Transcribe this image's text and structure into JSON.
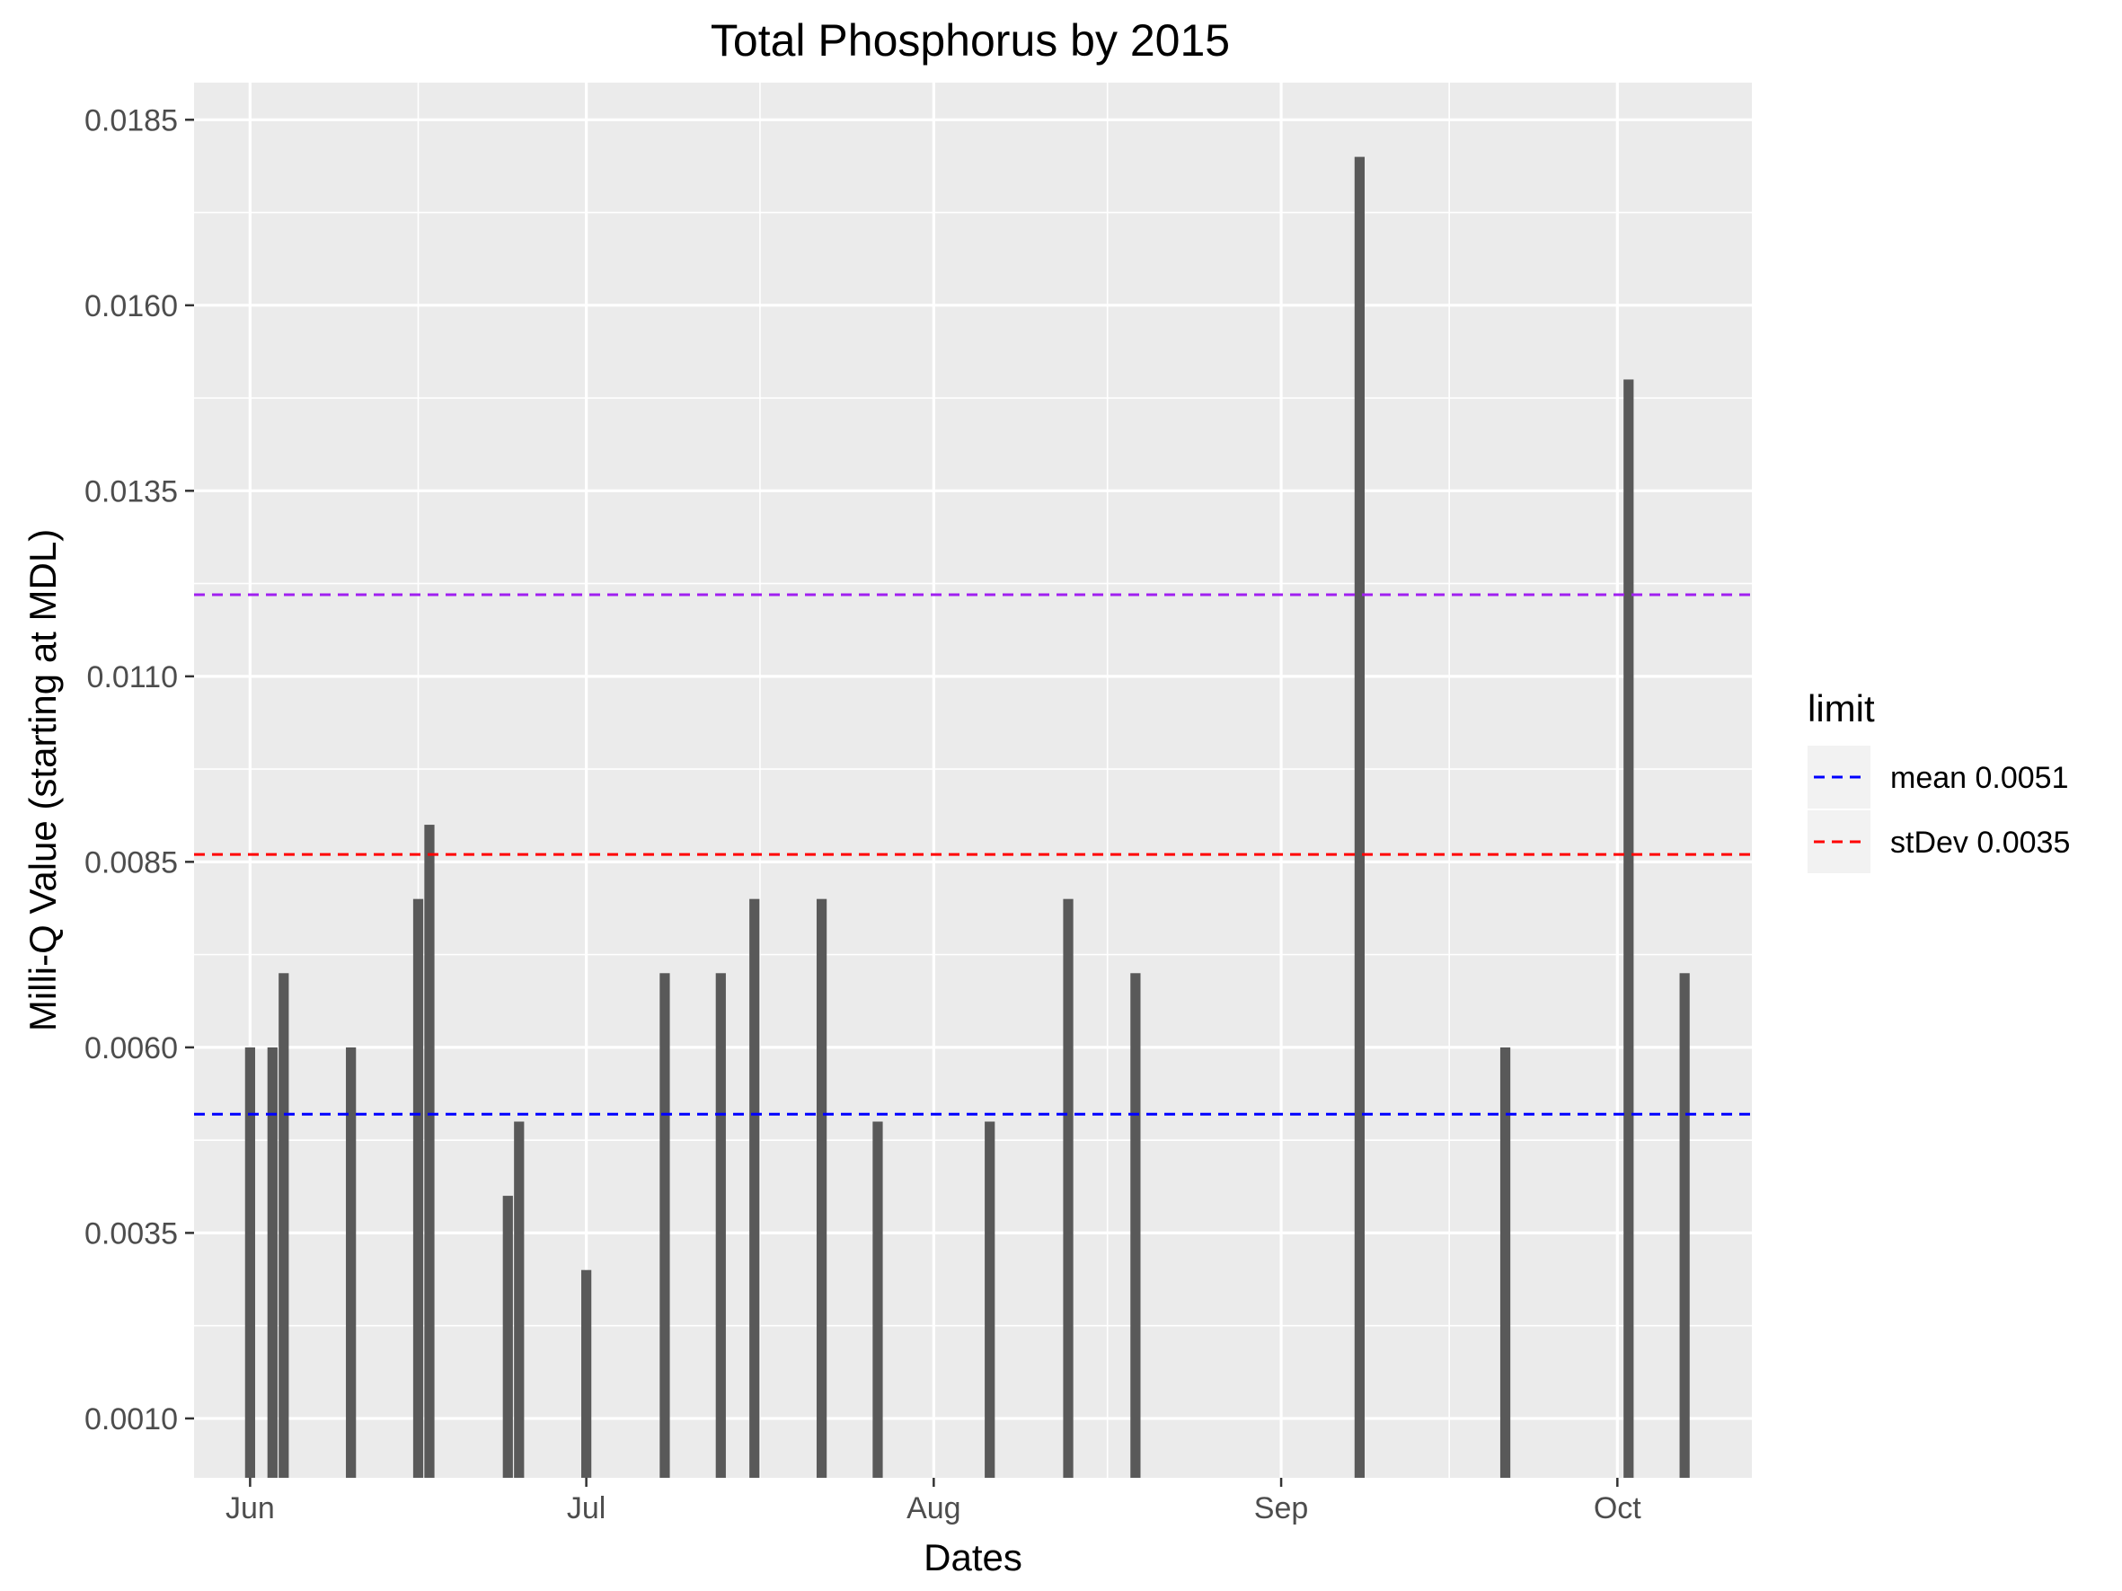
{
  "chart_data": {
    "type": "bar",
    "title": "Total Phosphorus by 2015",
    "xlabel": "Dates",
    "ylabel": "Milli-Q Value (starting at MDL)",
    "ylim": [
      0.0002,
      0.019
    ],
    "xlim": [
      "2015-05-27",
      "2015-10-13"
    ],
    "y_ticks": [
      "0.0010",
      "0.0035",
      "0.0060",
      "0.0085",
      "0.0110",
      "0.0135",
      "0.0160",
      "0.0185"
    ],
    "x_ticks": [
      {
        "label": "Jun",
        "date": "2015-06-01"
      },
      {
        "label": "Jul",
        "date": "2015-07-01"
      },
      {
        "label": "Aug",
        "date": "2015-08-01"
      },
      {
        "label": "Sep",
        "date": "2015-09-01"
      },
      {
        "label": "Oct",
        "date": "2015-10-01"
      }
    ],
    "bar_color": "#595959",
    "grid": true,
    "panel_background": "#ebebeb",
    "series": [
      {
        "name": "",
        "points": [
          {
            "x": "2015-06-01",
            "y": 0.006
          },
          {
            "x": "2015-06-03",
            "y": 0.006
          },
          {
            "x": "2015-06-04",
            "y": 0.007
          },
          {
            "x": "2015-06-10",
            "y": 0.006
          },
          {
            "x": "2015-06-16",
            "y": 0.008
          },
          {
            "x": "2015-06-17",
            "y": 0.009
          },
          {
            "x": "2015-06-24",
            "y": 0.004
          },
          {
            "x": "2015-06-25",
            "y": 0.005
          },
          {
            "x": "2015-07-01",
            "y": 0.003
          },
          {
            "x": "2015-07-08",
            "y": 0.007
          },
          {
            "x": "2015-07-13",
            "y": 0.007
          },
          {
            "x": "2015-07-16",
            "y": 0.008
          },
          {
            "x": "2015-07-22",
            "y": 0.008
          },
          {
            "x": "2015-07-27",
            "y": 0.005
          },
          {
            "x": "2015-08-06",
            "y": 0.005
          },
          {
            "x": "2015-08-13",
            "y": 0.008
          },
          {
            "x": "2015-08-19",
            "y": 0.007
          },
          {
            "x": "2015-09-08",
            "y": 0.018
          },
          {
            "x": "2015-09-21",
            "y": 0.006
          },
          {
            "x": "2015-10-02",
            "y": 0.015
          },
          {
            "x": "2015-10-07",
            "y": 0.007
          }
        ]
      }
    ],
    "reference_lines": [
      {
        "name": "mean 0.0051",
        "y": 0.0051,
        "color": "#0000ff",
        "style": "dashed",
        "in_legend": true
      },
      {
        "name": "stDev 0.0035",
        "y": 0.0086,
        "color": "#ff0000",
        "style": "dashed",
        "in_legend": true
      },
      {
        "name": "",
        "y": 0.0121,
        "color": "#a020f0",
        "style": "dashed",
        "in_legend": false
      }
    ],
    "legend": {
      "title": "limit",
      "placement": "right",
      "entries": [
        "mean 0.0051",
        "stDev 0.0035"
      ]
    }
  }
}
